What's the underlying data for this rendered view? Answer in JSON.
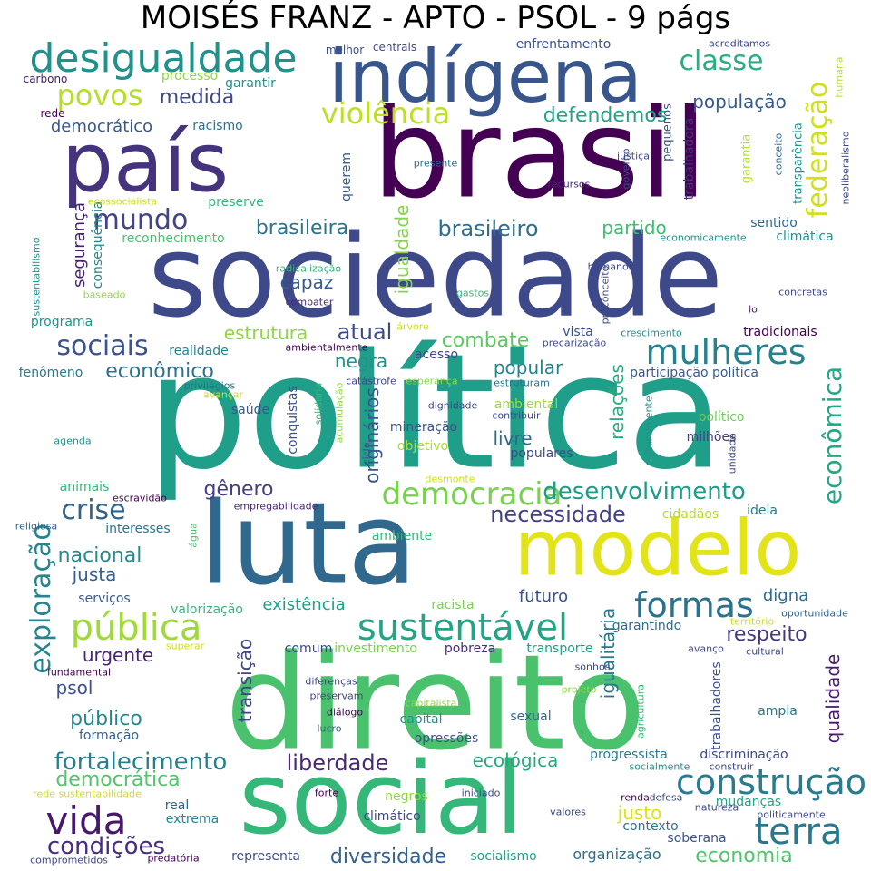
{
  "title": "MOISÉS FRANZ - APTO - PSOL - 9 págs",
  "words": [
    {
      "text": "política",
      "color": "#1f9e89"
    },
    {
      "text": "direito",
      "color": "#4ac16d"
    },
    {
      "text": "sociedade",
      "color": "#3e4989"
    },
    {
      "text": "brasil",
      "color": "#440154"
    },
    {
      "text": "luta",
      "color": "#31688e"
    },
    {
      "text": "social",
      "color": "#35b779"
    },
    {
      "text": "país",
      "color": "#46337e"
    },
    {
      "text": "modelo",
      "color": "#e2e418"
    },
    {
      "text": "indígena",
      "color": "#39568c"
    },
    {
      "text": "desigualdade",
      "color": "#21918c"
    },
    {
      "text": "sustentável",
      "color": "#21a685"
    },
    {
      "text": "pública",
      "color": "#a0da39"
    },
    {
      "text": "formas",
      "color": "#2c728e"
    },
    {
      "text": "mulheres",
      "color": "#26828e"
    },
    {
      "text": "construção",
      "color": "#287c8e"
    },
    {
      "text": "vida",
      "color": "#48186a"
    },
    {
      "text": "terra",
      "color": "#2a788e"
    },
    {
      "text": "democracia",
      "color": "#7ad151"
    },
    {
      "text": "exploração",
      "color": "#25858e"
    },
    {
      "text": "violência",
      "color": "#bddf26"
    },
    {
      "text": "povos",
      "color": "#b5de2b"
    },
    {
      "text": "classe",
      "color": "#29af7f"
    },
    {
      "text": "federação",
      "color": "#d0e11c"
    },
    {
      "text": "econômica",
      "color": "#22a884"
    },
    {
      "text": "mundo",
      "color": "#414487"
    },
    {
      "text": "sociais",
      "color": "#3b528b"
    },
    {
      "text": "crise",
      "color": "#33638d"
    },
    {
      "text": "condições",
      "color": "#472d7b"
    },
    {
      "text": "fortalecimento",
      "color": "#277f8e"
    },
    {
      "text": "desenvolvimento",
      "color": "#1e9c89"
    },
    {
      "text": "necessidade",
      "color": "#424086"
    },
    {
      "text": "atual",
      "color": "#3e4c8a"
    },
    {
      "text": "combate",
      "color": "#5ec962"
    },
    {
      "text": "liberdade",
      "color": "#482878"
    },
    {
      "text": "democrática",
      "color": "#52c569"
    },
    {
      "text": "economia",
      "color": "#50c46a"
    },
    {
      "text": "diversidade",
      "color": "#34618d"
    },
    {
      "text": "brasileiro",
      "color": "#2e6f8e"
    },
    {
      "text": "brasileira",
      "color": "#2b748e"
    },
    {
      "text": "medida",
      "color": "#3f4788"
    },
    {
      "text": "defendemos",
      "color": "#21a585"
    },
    {
      "text": "população",
      "color": "#375a8c"
    },
    {
      "text": "respeito",
      "color": "#453781"
    },
    {
      "text": "gênero",
      "color": "#433e85"
    },
    {
      "text": "nacional",
      "color": "#228b8d"
    },
    {
      "text": "público",
      "color": "#23898e"
    },
    {
      "text": "econômico",
      "color": "#2d718e"
    },
    {
      "text": "relações",
      "color": "#27ad81"
    },
    {
      "text": "igualitária",
      "color": "#2a768e"
    },
    {
      "text": "qualidade",
      "color": "#481b6d"
    },
    {
      "text": "ecológica",
      "color": "#25ab82"
    },
    {
      "text": "justo",
      "color": "#dde318"
    },
    {
      "text": "urgente",
      "color": "#482475"
    },
    {
      "text": "psol",
      "color": "#3b518b"
    },
    {
      "text": "negra",
      "color": "#20938c"
    },
    {
      "text": "popular",
      "color": "#25838e"
    },
    {
      "text": "livre",
      "color": "#30698e"
    },
    {
      "text": "justa",
      "color": "#355f8d"
    },
    {
      "text": "estrutura",
      "color": "#90d743"
    },
    {
      "text": "capaz",
      "color": "#365d8d"
    },
    {
      "text": "partido",
      "color": "#3dbc74"
    },
    {
      "text": "igualdade",
      "color": "#85d54a"
    },
    {
      "text": "transição",
      "color": "#404588"
    },
    {
      "text": "originários",
      "color": "#3a548c"
    },
    {
      "text": "existência",
      "color": "#1fa088"
    },
    {
      "text": "futuro",
      "color": "#3b528b"
    },
    {
      "text": "digna",
      "color": "#2f6c8e"
    },
    {
      "text": "segurança",
      "color": "#482071"
    },
    {
      "text": "democrático",
      "color": "#38598c"
    },
    {
      "text": "organização",
      "color": "#2d708e"
    },
    {
      "text": "socialismo",
      "color": "#1fa188"
    },
    {
      "text": "representa",
      "color": "#3d4e8a"
    },
    {
      "text": "contexto",
      "color": "#2c738e"
    },
    {
      "text": "trabalhadores",
      "color": "#3c4f8a"
    },
    {
      "text": "trabalhadora",
      "color": "#46307e"
    },
    {
      "text": "mineração",
      "color": "#3b528b"
    },
    {
      "text": "objetivo",
      "color": "#a8db34"
    },
    {
      "text": "ambiental",
      "color": "#9bd93c"
    },
    {
      "text": "capital",
      "color": "#21918c"
    },
    {
      "text": "sexual",
      "color": "#31688e"
    },
    {
      "text": "ampla",
      "color": "#2a788e"
    },
    {
      "text": "milhões",
      "color": "#433e85"
    },
    {
      "text": "político",
      "color": "#6ece58"
    },
    {
      "text": "participação política",
      "color": "#375a8c"
    },
    {
      "text": "realidade",
      "color": "#26828e"
    },
    {
      "text": "fenômeno",
      "color": "#2a788e"
    },
    {
      "text": "saúde",
      "color": "#39568c"
    },
    {
      "text": "interesses",
      "color": "#2c728e"
    },
    {
      "text": "animais",
      "color": "#35b779"
    },
    {
      "text": "serviços",
      "color": "#375a8c"
    },
    {
      "text": "formação",
      "color": "#34618d"
    },
    {
      "text": "valorização",
      "color": "#35b779"
    },
    {
      "text": "comum",
      "color": "#3e4989"
    },
    {
      "text": "investimento",
      "color": "#7ad151"
    },
    {
      "text": "pobreza",
      "color": "#472d7b"
    },
    {
      "text": "transporte",
      "color": "#1f9e89"
    },
    {
      "text": "progressista",
      "color": "#287c8e"
    },
    {
      "text": "discriminação",
      "color": "#3e4989"
    },
    {
      "text": "garantindo",
      "color": "#31688e"
    },
    {
      "text": "tradicionais",
      "color": "#440154"
    },
    {
      "text": "vista",
      "color": "#3b528b"
    },
    {
      "text": "acesso",
      "color": "#404588"
    },
    {
      "text": "populares",
      "color": "#3e4c8a"
    },
    {
      "text": "cidadãos",
      "color": "#b5de2b"
    },
    {
      "text": "ideia",
      "color": "#2a788e"
    },
    {
      "text": "ambiente",
      "color": "#35b779"
    },
    {
      "text": "racista",
      "color": "#7ad151"
    },
    {
      "text": "opressões",
      "color": "#3b528b"
    },
    {
      "text": "real",
      "color": "#31688e"
    },
    {
      "text": "extrema",
      "color": "#26828e"
    },
    {
      "text": "climático",
      "color": "#3e4989"
    },
    {
      "text": "mudanças",
      "color": "#21a685"
    },
    {
      "text": "soberana",
      "color": "#3b528b"
    },
    {
      "text": "conquistas",
      "color": "#3b528b"
    },
    {
      "text": "querem",
      "color": "#375a8c"
    },
    {
      "text": "consequência",
      "color": "#26828e"
    },
    {
      "text": "reconhecimento",
      "color": "#4ac16d"
    },
    {
      "text": "programa",
      "color": "#21918c"
    },
    {
      "text": "sentido",
      "color": "#31688e"
    },
    {
      "text": "climática",
      "color": "#21918c"
    },
    {
      "text": "preserve",
      "color": "#35b779"
    },
    {
      "text": "garantir",
      "color": "#21918c"
    },
    {
      "text": "processo",
      "color": "#90d743"
    },
    {
      "text": "racismo",
      "color": "#2c728e"
    },
    {
      "text": "rede",
      "color": "#440154"
    },
    {
      "text": "carbono",
      "color": "#482071"
    },
    {
      "text": "enfrentamento",
      "color": "#3b528b"
    },
    {
      "text": "centrais",
      "color": "#3e4989"
    },
    {
      "text": "melhor",
      "color": "#3e4c8a"
    },
    {
      "text": "acreditamos",
      "color": "#3e4989"
    },
    {
      "text": "humana",
      "color": "#b5de2b"
    },
    {
      "text": "neoliberalismo",
      "color": "#3e4989"
    },
    {
      "text": "conceito",
      "color": "#31688e"
    },
    {
      "text": "transparência",
      "color": "#21918c"
    },
    {
      "text": "garantia",
      "color": "#b5de2b"
    },
    {
      "text": "governo",
      "color": "#3e4989"
    },
    {
      "text": "justiça",
      "color": "#3e4989"
    },
    {
      "text": "pequenos",
      "color": "#3b528b"
    },
    {
      "text": "recursos",
      "color": "#482878"
    },
    {
      "text": "presente",
      "color": "#31688e"
    },
    {
      "text": "ecossocialista",
      "color": "#d0e11c"
    },
    {
      "text": "economicamente",
      "color": "#21918c"
    },
    {
      "text": "humanos",
      "color": "#3e4989"
    },
    {
      "text": "radicalização",
      "color": "#35b779"
    },
    {
      "text": "gastos",
      "color": "#35b779"
    },
    {
      "text": "baseado",
      "color": "#90d743"
    },
    {
      "text": "combater",
      "color": "#482878"
    },
    {
      "text": "preconceito",
      "color": "#3e4989"
    },
    {
      "text": "concretas",
      "color": "#3e4989"
    },
    {
      "text": "lo",
      "color": "#482071"
    },
    {
      "text": "sustentabilismo",
      "color": "#21918c"
    },
    {
      "text": "árvore",
      "color": "#d0e11c"
    },
    {
      "text": "crescimento",
      "color": "#21918c"
    },
    {
      "text": "ambientalmente",
      "color": "#440154"
    },
    {
      "text": "precarização",
      "color": "#3e4989"
    },
    {
      "text": "privilégios",
      "color": "#2c728e"
    },
    {
      "text": "catástrofe",
      "color": "#3e4989"
    },
    {
      "text": "esperança",
      "color": "#90d743"
    },
    {
      "text": "estruturam",
      "color": "#2c728e"
    },
    {
      "text": "solidária",
      "color": "#35b779"
    },
    {
      "text": "acumulação",
      "color": "#90d743"
    },
    {
      "text": "avançar",
      "color": "#d0e11c"
    },
    {
      "text": "agenda",
      "color": "#21918c"
    },
    {
      "text": "dignidade",
      "color": "#3e4989"
    },
    {
      "text": "contribuir",
      "color": "#3e4989"
    },
    {
      "text": "ciclo",
      "color": "#3e4989"
    },
    {
      "text": "culturalmente",
      "color": "#21918c"
    },
    {
      "text": "unidade",
      "color": "#3e4989"
    },
    {
      "text": "desmonte",
      "color": "#d0e11c"
    },
    {
      "text": "escravidão",
      "color": "#440154"
    },
    {
      "text": "empregabilidade",
      "color": "#482878"
    },
    {
      "text": "religiosa",
      "color": "#31688e"
    },
    {
      "text": "água",
      "color": "#4ac16d"
    },
    {
      "text": "oportunidade",
      "color": "#31688e"
    },
    {
      "text": "território",
      "color": "#d0e11c"
    },
    {
      "text": "superar",
      "color": "#d0e11c"
    },
    {
      "text": "cultural",
      "color": "#3e4989"
    },
    {
      "text": "avanço",
      "color": "#3e4989"
    },
    {
      "text": "sonhos",
      "color": "#3e4989"
    },
    {
      "text": "projeto",
      "color": "#90d743"
    },
    {
      "text": "fundamental",
      "color": "#440154"
    },
    {
      "text": "diferenças",
      "color": "#3e4989"
    },
    {
      "text": "preservam",
      "color": "#3e4989"
    },
    {
      "text": "diálogo",
      "color": "#440154"
    },
    {
      "text": "capitalista",
      "color": "#90d743"
    },
    {
      "text": "agricultura",
      "color": "#35b779"
    },
    {
      "text": "lucro",
      "color": "#31688e"
    },
    {
      "text": "socialmente",
      "color": "#21918c"
    },
    {
      "text": "construir",
      "color": "#3e4989"
    },
    {
      "text": "rede sustentabilidade",
      "color": "#d0e11c"
    },
    {
      "text": "forte",
      "color": "#440154"
    },
    {
      "text": "iniciado",
      "color": "#3e4989"
    },
    {
      "text": "negros",
      "color": "#90d743"
    },
    {
      "text": "renda",
      "color": "#440154"
    },
    {
      "text": "defesa",
      "color": "#3e4989"
    },
    {
      "text": "natureza",
      "color": "#3e4989"
    },
    {
      "text": "politicamente",
      "color": "#3e4989"
    },
    {
      "text": "valores",
      "color": "#3e4989"
    },
    {
      "text": "predatória",
      "color": "#440154"
    },
    {
      "text": "comprometidos",
      "color": "#3e4989"
    }
  ]
}
